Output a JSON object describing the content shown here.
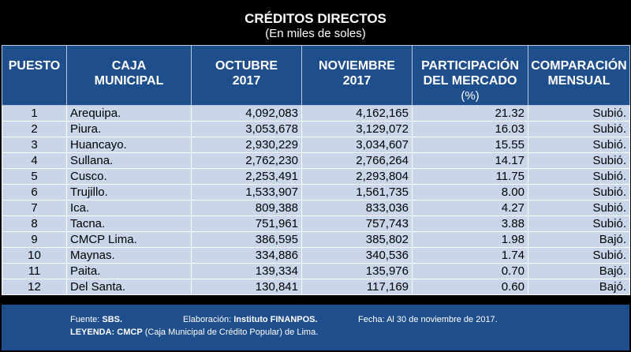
{
  "title": "CRÉDITOS DIRECTOS",
  "subtitle": "(En miles de soles)",
  "headers": {
    "puesto": "PUESTO",
    "caja_l1": "CAJA",
    "caja_l2": "MUNICIPAL",
    "oct_l1": "OCTUBRE",
    "oct_l2": "2017",
    "nov_l1": "NOVIEMBRE",
    "nov_l2": "2017",
    "part_l1": "PARTICIPACIÓN",
    "part_l2": "DEL MERCADO",
    "part_l3": "(%)",
    "comp_l1": "COMPARACIÓN",
    "comp_l2": "MENSUAL"
  },
  "rows": [
    {
      "puesto": "1",
      "caja": "Arequipa.",
      "oct": "4,092,083",
      "nov": "4,162,165",
      "part": "21.32",
      "comp": "Subió."
    },
    {
      "puesto": "2",
      "caja": "Piura.",
      "oct": "3,053,678",
      "nov": "3,129,072",
      "part": "16.03",
      "comp": "Subió."
    },
    {
      "puesto": "3",
      "caja": "Huancayo.",
      "oct": "2,930,229",
      "nov": "3,034,607",
      "part": "15.55",
      "comp": "Subió."
    },
    {
      "puesto": "4",
      "caja": "Sullana.",
      "oct": "2,762,230",
      "nov": "2,766,264",
      "part": "14.17",
      "comp": "Subió."
    },
    {
      "puesto": "5",
      "caja": "Cusco.",
      "oct": "2,253,491",
      "nov": "2,293,804",
      "part": "11.75",
      "comp": "Subió."
    },
    {
      "puesto": "6",
      "caja": "Trujillo.",
      "oct": "1,533,907",
      "nov": "1,561,735",
      "part": "8.00",
      "comp": "Subió."
    },
    {
      "puesto": "7",
      "caja": "Ica.",
      "oct": "809,388",
      "nov": "833,036",
      "part": "4.27",
      "comp": "Subió."
    },
    {
      "puesto": "8",
      "caja": "Tacna.",
      "oct": "751,961",
      "nov": "757,743",
      "part": "3.88",
      "comp": "Subió."
    },
    {
      "puesto": "9",
      "caja": "CMCP Lima.",
      "oct": "386,595",
      "nov": "385,802",
      "part": "1.98",
      "comp": "Bajó."
    },
    {
      "puesto": "10",
      "caja": "Maynas.",
      "oct": "334,886",
      "nov": "340,536",
      "part": "1.74",
      "comp": "Subió."
    },
    {
      "puesto": "11",
      "caja": "Paita.",
      "oct": "139,334",
      "nov": "135,976",
      "part": "0.70",
      "comp": "Bajó."
    },
    {
      "puesto": "12",
      "caja": "Del Santa.",
      "oct": "130,841",
      "nov": "117,169",
      "part": "0.60",
      "comp": "Bajó."
    }
  ],
  "footer": {
    "fuente_label": "Fuente:",
    "fuente_value": "SBS.",
    "elab_label": "Elaboración:",
    "elab_value": "Instituto FINANPOS.",
    "fecha": "Fecha: Al 30 de noviembre de 2017.",
    "leyenda_label": "LEYENDA:",
    "leyenda_abbr": "CMCP",
    "leyenda_text": "(Caja Municipal de Crédito Popular) de Lima."
  }
}
